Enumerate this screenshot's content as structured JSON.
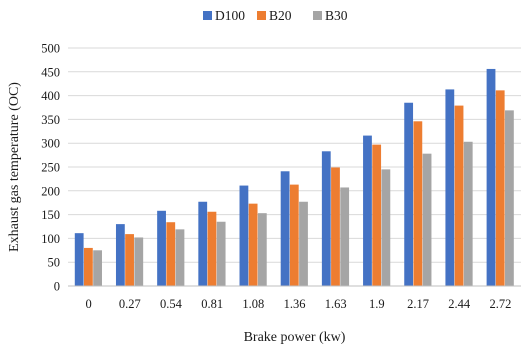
{
  "chart_data": {
    "type": "bar",
    "categories": [
      "0",
      "0.27",
      "0.54",
      "0.81",
      "1.08",
      "1.36",
      "1.63",
      "1.9",
      "2.17",
      "2.44",
      "2.72"
    ],
    "series": [
      {
        "name": "D100",
        "color": "#4472C4",
        "values": [
          111,
          130,
          158,
          177,
          211,
          241,
          283,
          316,
          385,
          413,
          456
        ]
      },
      {
        "name": "B20",
        "color": "#ED7D31",
        "values": [
          80,
          109,
          134,
          156,
          173,
          213,
          249,
          297,
          346,
          379,
          411
        ]
      },
      {
        "name": "B30",
        "color": "#A5A5A5",
        "values": [
          75,
          102,
          119,
          135,
          153,
          177,
          207,
          245,
          278,
          303,
          369
        ]
      }
    ],
    "xlabel": "Brake power (kw)",
    "ylabel": "Exhaust gas temperature (OC)",
    "ylim": [
      0,
      500
    ],
    "yticks": [
      0,
      50,
      100,
      150,
      200,
      250,
      300,
      350,
      400,
      450,
      500
    ],
    "grid": true,
    "legend_position": "top"
  }
}
